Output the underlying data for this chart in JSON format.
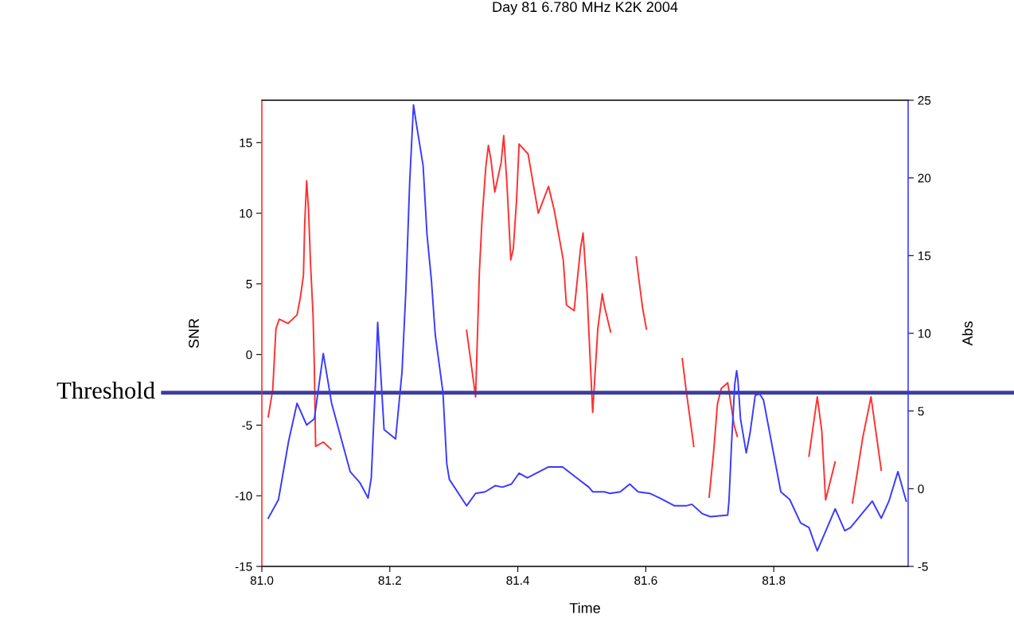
{
  "chart_data": {
    "type": "line",
    "title": "Day 81 6.780 MHz K2K 2004",
    "xlabel": "Time",
    "ylabel": "SNR",
    "y2label": "Abs",
    "xlim": [
      81.0,
      82.01
    ],
    "xticks": [
      {
        "value": 81.0,
        "label": "81.0"
      },
      {
        "value": 81.2,
        "label": "81.2"
      },
      {
        "value": 81.4,
        "label": "81.4"
      },
      {
        "value": 81.6,
        "label": "81.6"
      },
      {
        "value": 81.8,
        "label": "81.8"
      }
    ],
    "ylim": [
      -15,
      18
    ],
    "yticks": [
      -15,
      -10,
      -5,
      0,
      5,
      10,
      15
    ],
    "y2lim": [
      -5,
      25
    ],
    "y2ticks": [
      -5,
      0,
      5,
      10,
      15,
      20,
      25
    ],
    "grid": false,
    "legend": false,
    "marker": "none",
    "line_style": "solid",
    "ref_lines": [
      {
        "axis": "y",
        "value": -2.7,
        "label": "Threshold",
        "color": "#3c3ca0"
      }
    ],
    "series": [
      {
        "color": "#ff3030",
        "x": [
          81.01,
          81.017,
          81.022,
          81.027,
          81.041,
          81.055,
          81.06,
          81.065,
          81.067,
          81.07,
          81.073,
          81.076,
          81.08,
          81.082,
          81.084,
          81.096,
          81.108,
          81.2,
          81.32,
          81.334,
          81.34,
          81.344,
          81.35,
          81.354,
          81.358,
          81.364,
          81.374,
          81.378,
          81.383,
          81.389,
          81.393,
          81.398,
          81.402,
          81.416,
          81.432,
          81.448,
          81.457,
          81.471,
          81.476,
          81.488,
          81.498,
          81.502,
          81.508,
          81.513,
          81.517,
          81.525,
          81.532,
          81.535,
          81.545,
          81.56,
          81.585,
          81.589,
          81.595,
          81.601,
          81.63,
          81.657,
          81.663,
          81.675,
          81.68,
          81.699,
          81.706,
          81.712,
          81.718,
          81.728,
          81.738,
          81.743,
          81.8,
          81.855,
          81.868,
          81.875,
          81.881,
          81.896,
          81.91,
          81.923,
          81.939,
          81.952,
          81.968
        ],
        "values": [
          -4.4,
          -2.5,
          1.8,
          2.5,
          2.2,
          2.8,
          4.0,
          5.6,
          9.3,
          12.3,
          10.2,
          6.5,
          2.8,
          -0.8,
          -6.5,
          -6.2,
          -6.7,
          null,
          1.7,
          -3.0,
          5.9,
          9.5,
          13.3,
          14.8,
          13.8,
          11.5,
          13.6,
          15.5,
          12.1,
          6.7,
          7.5,
          10.9,
          14.9,
          14.2,
          10.0,
          11.9,
          10.2,
          6.7,
          3.5,
          3.1,
          7.5,
          8.6,
          4.6,
          -0.3,
          -4.1,
          1.8,
          4.3,
          3.5,
          1.6,
          null,
          6.9,
          5.4,
          3.3,
          1.8,
          null,
          -0.3,
          -2.5,
          -6.5,
          null,
          -10.1,
          -6.9,
          -3.5,
          -2.4,
          -2.0,
          -5.0,
          -5.8,
          null,
          -7.2,
          -3.0,
          -5.4,
          -10.3,
          -7.6,
          null,
          -10.5,
          -5.9,
          -3.0,
          -8.2
        ]
      },
      {
        "color": "#3a3aff",
        "axis": "y2",
        "x": [
          81.01,
          81.026,
          81.042,
          81.055,
          81.07,
          81.082,
          81.096,
          81.109,
          81.138,
          81.153,
          81.166,
          81.171,
          81.178,
          81.181,
          81.191,
          81.209,
          81.219,
          81.225,
          81.231,
          81.237,
          81.241,
          81.252,
          81.258,
          81.265,
          81.271,
          81.283,
          81.289,
          81.293,
          81.32,
          81.334,
          81.349,
          81.365,
          81.376,
          81.39,
          81.402,
          81.415,
          81.448,
          81.47,
          81.492,
          81.511,
          81.517,
          81.535,
          81.544,
          81.56,
          81.575,
          81.588,
          81.606,
          81.622,
          81.645,
          81.663,
          81.672,
          81.688,
          81.701,
          81.728,
          81.73,
          81.734,
          81.739,
          81.742,
          81.744,
          81.748,
          81.757,
          81.763,
          81.771,
          81.778,
          81.784,
          81.811,
          81.825,
          81.842,
          81.855,
          81.868,
          81.896,
          81.911,
          81.92,
          81.954,
          81.968,
          81.98,
          81.994,
          82.007
        ],
        "values": [
          -1.9,
          -0.7,
          3.1,
          5.5,
          4.1,
          4.5,
          8.7,
          5.5,
          1.1,
          0.4,
          -0.6,
          0.7,
          7.2,
          10.7,
          3.8,
          3.2,
          7.5,
          12.7,
          19.7,
          24.7,
          23.6,
          20.8,
          16.4,
          13.4,
          9.9,
          6.2,
          1.6,
          0.6,
          -1.1,
          -0.3,
          -0.2,
          0.2,
          0.1,
          0.3,
          1.0,
          0.7,
          1.4,
          1.4,
          0.7,
          0.1,
          -0.2,
          -0.2,
          -0.3,
          -0.2,
          0.3,
          -0.2,
          -0.3,
          -0.6,
          -1.1,
          -1.1,
          -1.0,
          -1.6,
          -1.8,
          -1.7,
          -0.8,
          2.9,
          6.7,
          7.6,
          7.0,
          4.5,
          2.3,
          3.6,
          6.0,
          6.1,
          5.7,
          -0.2,
          -0.7,
          -2.2,
          -2.5,
          -4.0,
          -1.3,
          -2.7,
          -2.5,
          -0.8,
          -1.9,
          -0.8,
          1.1,
          -0.8
        ]
      }
    ]
  }
}
